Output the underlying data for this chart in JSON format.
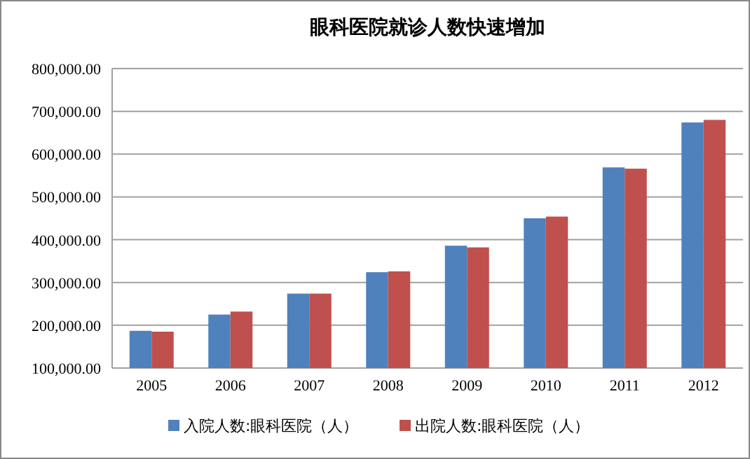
{
  "chart_data": {
    "type": "bar",
    "title": "眼科医院就诊人数快速增加",
    "categories": [
      "2005",
      "2006",
      "2007",
      "2008",
      "2009",
      "2010",
      "2011",
      "2012"
    ],
    "series": [
      {
        "name": "入院人数:眼科医院（人）",
        "color": "#4f81bd",
        "values": [
          187000,
          225000,
          274000,
          324000,
          386000,
          450000,
          569000,
          674000
        ]
      },
      {
        "name": "出院人数:眼科医院（人）",
        "color": "#c0504d",
        "values": [
          185000,
          232000,
          274000,
          326000,
          382000,
          454000,
          566000,
          680000
        ]
      }
    ],
    "ylim": [
      100000,
      800000
    ],
    "yticks": [
      {
        "value": 100000,
        "label": "100,000.00"
      },
      {
        "value": 200000,
        "label": "200,000.00"
      },
      {
        "value": 300000,
        "label": "300,000.00"
      },
      {
        "value": 400000,
        "label": "400,000.00"
      },
      {
        "value": 500000,
        "label": "500,000.00"
      },
      {
        "value": 600000,
        "label": "600,000.00"
      },
      {
        "value": 700000,
        "label": "700,000.00"
      },
      {
        "value": 800000,
        "label": "800,000.00"
      }
    ],
    "grid": "y",
    "legend": "bottom"
  }
}
